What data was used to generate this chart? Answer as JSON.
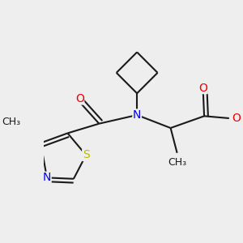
{
  "bg_color": "#eeeeee",
  "bond_color": "#1a1a1a",
  "bond_width": 1.5,
  "atom_colors": {
    "N": "#0000ee",
    "O": "#ee0000",
    "S": "#bbbb00",
    "C": "#1a1a1a"
  },
  "font_size_atom": 10,
  "font_size_methyl": 9
}
